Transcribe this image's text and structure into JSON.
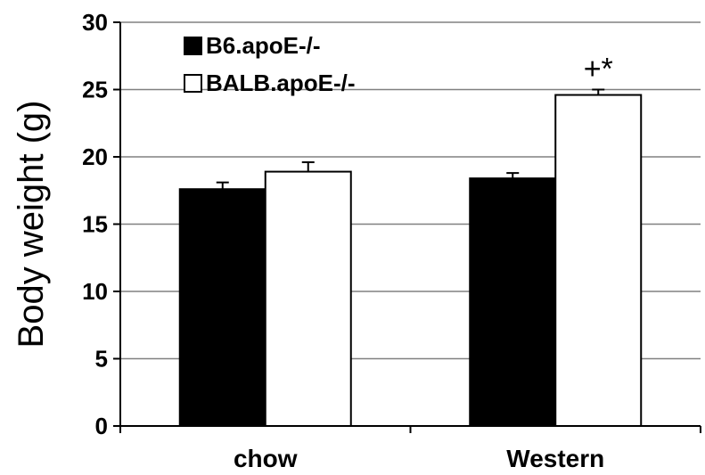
{
  "chart_data": {
    "type": "bar",
    "title": "",
    "xlabel": "",
    "ylabel": "Body weight (g)",
    "ylim": [
      0,
      30
    ],
    "yticks": [
      0,
      5,
      10,
      15,
      20,
      25,
      30
    ],
    "grid": true,
    "legend_position": "top-left",
    "categories": [
      "chow",
      "Western"
    ],
    "series": [
      {
        "name": "B6.apoE-/-",
        "color": "#000000",
        "values": [
          17.6,
          18.4
        ],
        "errors": [
          0.5,
          0.4
        ]
      },
      {
        "name": "BALB.apoE-/-",
        "color": "#ffffff",
        "values": [
          18.9,
          24.6
        ],
        "errors": [
          0.7,
          0.4
        ]
      }
    ],
    "annotations": [
      {
        "text": "+*",
        "category": "Western",
        "series": "BALB.apoE-/-"
      }
    ]
  }
}
